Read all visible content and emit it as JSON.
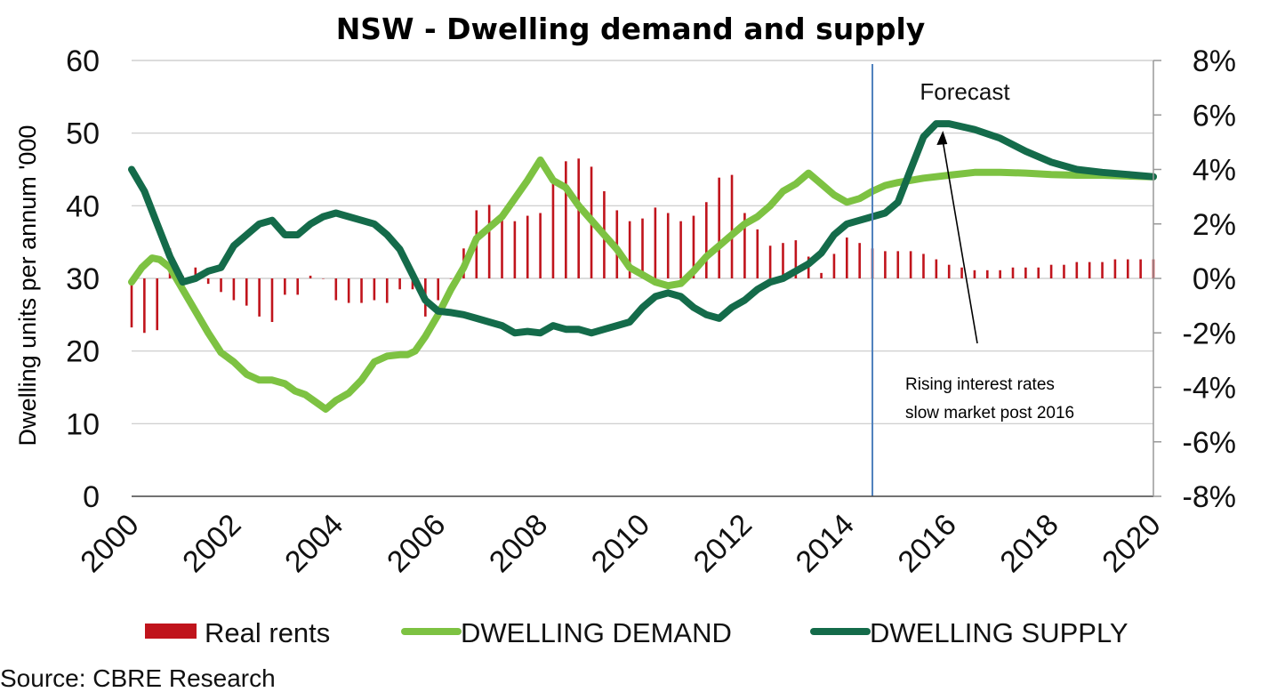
{
  "chart_data": {
    "type": "bar+line",
    "title": "NSW - Dwelling demand and supply",
    "ylabel": "Dwelling units per annum '000",
    "y2label": "",
    "ylim": [
      0,
      60
    ],
    "y2lim": [
      -8,
      8
    ],
    "xlim": [
      2000,
      2020
    ],
    "yticks": [
      "0",
      "10",
      "20",
      "30",
      "40",
      "50",
      "60"
    ],
    "y2ticks": [
      "-8%",
      "-6%",
      "-4%",
      "-2%",
      "0%",
      "2%",
      "4%",
      "6%",
      "8%"
    ],
    "xticks": [
      "2000",
      "2002",
      "2004",
      "2006",
      "2008",
      "2010",
      "2012",
      "2014",
      "2016",
      "2018",
      "2020"
    ],
    "forecast_start": 2014.5,
    "colors": {
      "real_rents": "#c0141c",
      "demand": "#7dc242",
      "supply": "#146b4a",
      "forecast_line": "#4f81bd",
      "axis": "#999999"
    },
    "series": [
      {
        "name": "Real rents",
        "type": "bar",
        "axis": "secondary",
        "x": [
          2000.0,
          2000.25,
          2000.5,
          2000.75,
          2001.0,
          2001.25,
          2001.5,
          2001.75,
          2002.0,
          2002.25,
          2002.5,
          2002.75,
          2003.0,
          2003.25,
          2003.5,
          2003.75,
          2004.0,
          2004.25,
          2004.5,
          2004.75,
          2005.0,
          2005.25,
          2005.5,
          2005.75,
          2006.0,
          2006.25,
          2006.5,
          2006.75,
          2007.0,
          2007.25,
          2007.5,
          2007.75,
          2008.0,
          2008.25,
          2008.5,
          2008.75,
          2009.0,
          2009.25,
          2009.5,
          2009.75,
          2010.0,
          2010.25,
          2010.5,
          2010.75,
          2011.0,
          2011.25,
          2011.5,
          2011.75,
          2012.0,
          2012.25,
          2012.5,
          2012.75,
          2013.0,
          2013.25,
          2013.5,
          2013.75,
          2014.0,
          2014.25,
          2014.5,
          2014.75,
          2015.0,
          2015.25,
          2015.5,
          2015.75,
          2016.0,
          2016.25,
          2016.5,
          2016.75,
          2017.0,
          2017.25,
          2017.5,
          2017.75,
          2018.0,
          2018.25,
          2018.5,
          2018.75,
          2019.0,
          2019.25,
          2019.5,
          2019.75,
          2020.0
        ],
        "values": [
          -1.8,
          -2.0,
          -1.9,
          1.1,
          0.1,
          0.4,
          -0.2,
          -0.5,
          -0.8,
          -1.0,
          -1.4,
          -1.6,
          -0.6,
          -0.6,
          0.1,
          0.0,
          -0.8,
          -0.9,
          -0.9,
          -0.8,
          -0.9,
          -0.4,
          -0.4,
          -1.4,
          -0.8,
          0.0,
          1.1,
          2.5,
          2.7,
          2.3,
          2.1,
          2.3,
          2.4,
          3.7,
          4.3,
          4.4,
          4.1,
          3.2,
          2.5,
          2.1,
          2.2,
          2.6,
          2.4,
          2.1,
          2.3,
          2.8,
          3.7,
          3.8,
          2.4,
          1.8,
          1.2,
          1.3,
          1.4,
          0.8,
          0.2,
          0.9,
          1.5,
          1.3,
          1.1,
          1.0,
          1.0,
          1.0,
          0.9,
          0.7,
          0.5,
          0.4,
          0.3,
          0.3,
          0.3,
          0.4,
          0.4,
          0.4,
          0.5,
          0.5,
          0.6,
          0.6,
          0.6,
          0.7,
          0.7,
          0.7,
          0.7
        ]
      },
      {
        "name": "DWELLING DEMAND",
        "type": "line",
        "axis": "primary",
        "points": [
          [
            2000.0,
            29.5
          ],
          [
            2000.2,
            31.5
          ],
          [
            2000.4,
            32.8
          ],
          [
            2000.55,
            32.6
          ],
          [
            2000.75,
            31.5
          ],
          [
            2001.0,
            28.5
          ],
          [
            2001.25,
            25.5
          ],
          [
            2001.5,
            22.5
          ],
          [
            2001.75,
            19.8
          ],
          [
            2002.0,
            18.5
          ],
          [
            2002.25,
            16.8
          ],
          [
            2002.5,
            16.0
          ],
          [
            2002.75,
            16.0
          ],
          [
            2003.0,
            15.5
          ],
          [
            2003.2,
            14.5
          ],
          [
            2003.4,
            14.0
          ],
          [
            2003.6,
            13.0
          ],
          [
            2003.8,
            12.0
          ],
          [
            2004.0,
            13.2
          ],
          [
            2004.25,
            14.2
          ],
          [
            2004.5,
            16.0
          ],
          [
            2004.75,
            18.5
          ],
          [
            2005.0,
            19.3
          ],
          [
            2005.25,
            19.5
          ],
          [
            2005.4,
            19.5
          ],
          [
            2005.55,
            20.0
          ],
          [
            2005.75,
            22.0
          ],
          [
            2006.0,
            25.0
          ],
          [
            2006.25,
            28.5
          ],
          [
            2006.5,
            31.5
          ],
          [
            2006.75,
            35.5
          ],
          [
            2007.0,
            37.0
          ],
          [
            2007.25,
            38.5
          ],
          [
            2007.5,
            41.0
          ],
          [
            2007.75,
            43.5
          ],
          [
            2008.0,
            46.3
          ],
          [
            2008.25,
            43.5
          ],
          [
            2008.5,
            42.5
          ],
          [
            2008.75,
            40.0
          ],
          [
            2009.0,
            38.0
          ],
          [
            2009.25,
            36.0
          ],
          [
            2009.5,
            34.0
          ],
          [
            2009.75,
            31.5
          ],
          [
            2010.0,
            30.5
          ],
          [
            2010.25,
            29.5
          ],
          [
            2010.5,
            29.0
          ],
          [
            2010.75,
            29.3
          ],
          [
            2011.0,
            31.0
          ],
          [
            2011.25,
            33.0
          ],
          [
            2011.5,
            34.5
          ],
          [
            2011.75,
            36.0
          ],
          [
            2012.0,
            37.5
          ],
          [
            2012.25,
            38.5
          ],
          [
            2012.5,
            40.0
          ],
          [
            2012.75,
            42.0
          ],
          [
            2013.0,
            43.0
          ],
          [
            2013.25,
            44.5
          ],
          [
            2013.5,
            43.0
          ],
          [
            2013.75,
            41.5
          ],
          [
            2014.0,
            40.5
          ],
          [
            2014.25,
            41.0
          ],
          [
            2014.5,
            42.0
          ],
          [
            2014.75,
            42.8
          ],
          [
            2015.0,
            43.2
          ],
          [
            2015.5,
            43.8
          ],
          [
            2016.0,
            44.2
          ],
          [
            2016.5,
            44.6
          ],
          [
            2017.0,
            44.6
          ],
          [
            2017.5,
            44.5
          ],
          [
            2018.0,
            44.3
          ],
          [
            2018.5,
            44.2
          ],
          [
            2019.0,
            44.2
          ],
          [
            2019.5,
            44.1
          ],
          [
            2020.0,
            44.0
          ]
        ]
      },
      {
        "name": "DWELLING SUPPLY",
        "type": "line",
        "axis": "primary",
        "points": [
          [
            2000.0,
            45.0
          ],
          [
            2000.25,
            42.0
          ],
          [
            2000.5,
            37.5
          ],
          [
            2000.75,
            33.0
          ],
          [
            2001.0,
            29.5
          ],
          [
            2001.25,
            30.0
          ],
          [
            2001.5,
            31.0
          ],
          [
            2001.75,
            31.5
          ],
          [
            2002.0,
            34.5
          ],
          [
            2002.25,
            36.0
          ],
          [
            2002.5,
            37.5
          ],
          [
            2002.75,
            38.0
          ],
          [
            2003.0,
            36.0
          ],
          [
            2003.25,
            36.0
          ],
          [
            2003.5,
            37.5
          ],
          [
            2003.75,
            38.5
          ],
          [
            2004.0,
            39.0
          ],
          [
            2004.25,
            38.5
          ],
          [
            2004.5,
            38.0
          ],
          [
            2004.75,
            37.5
          ],
          [
            2005.0,
            36.0
          ],
          [
            2005.25,
            34.0
          ],
          [
            2005.5,
            30.5
          ],
          [
            2005.75,
            27.0
          ],
          [
            2006.0,
            25.5
          ],
          [
            2006.25,
            25.3
          ],
          [
            2006.5,
            25.0
          ],
          [
            2006.75,
            24.5
          ],
          [
            2007.0,
            24.0
          ],
          [
            2007.25,
            23.5
          ],
          [
            2007.5,
            22.5
          ],
          [
            2007.75,
            22.7
          ],
          [
            2008.0,
            22.5
          ],
          [
            2008.25,
            23.5
          ],
          [
            2008.5,
            23.0
          ],
          [
            2008.75,
            23.0
          ],
          [
            2009.0,
            22.5
          ],
          [
            2009.25,
            23.0
          ],
          [
            2009.5,
            23.5
          ],
          [
            2009.75,
            24.0
          ],
          [
            2010.0,
            26.0
          ],
          [
            2010.25,
            27.5
          ],
          [
            2010.5,
            28.0
          ],
          [
            2010.75,
            27.5
          ],
          [
            2011.0,
            26.0
          ],
          [
            2011.25,
            25.0
          ],
          [
            2011.5,
            24.5
          ],
          [
            2011.75,
            26.0
          ],
          [
            2012.0,
            27.0
          ],
          [
            2012.25,
            28.5
          ],
          [
            2012.5,
            29.5
          ],
          [
            2012.75,
            30.0
          ],
          [
            2013.0,
            31.0
          ],
          [
            2013.25,
            32.0
          ],
          [
            2013.5,
            33.5
          ],
          [
            2013.75,
            36.0
          ],
          [
            2014.0,
            37.5
          ],
          [
            2014.25,
            38.0
          ],
          [
            2014.5,
            38.5
          ],
          [
            2014.75,
            39.0
          ],
          [
            2015.0,
            40.5
          ],
          [
            2015.25,
            45.0
          ],
          [
            2015.5,
            49.5
          ],
          [
            2015.75,
            51.3
          ],
          [
            2016.0,
            51.3
          ],
          [
            2016.5,
            50.5
          ],
          [
            2017.0,
            49.3
          ],
          [
            2017.5,
            47.5
          ],
          [
            2018.0,
            46.0
          ],
          [
            2018.5,
            45.0
          ],
          [
            2019.0,
            44.6
          ],
          [
            2019.5,
            44.3
          ],
          [
            2020.0,
            44.0
          ]
        ]
      }
    ],
    "annotations": {
      "forecast_label": "Forecast",
      "note_line1": "Rising interest rates",
      "note_line2": "slow market post 2016"
    },
    "legend": {
      "placement": "bottom",
      "items": [
        "Real rents",
        "DWELLING DEMAND",
        "DWELLING SUPPLY"
      ]
    },
    "source": "Source: CBRE Research"
  }
}
